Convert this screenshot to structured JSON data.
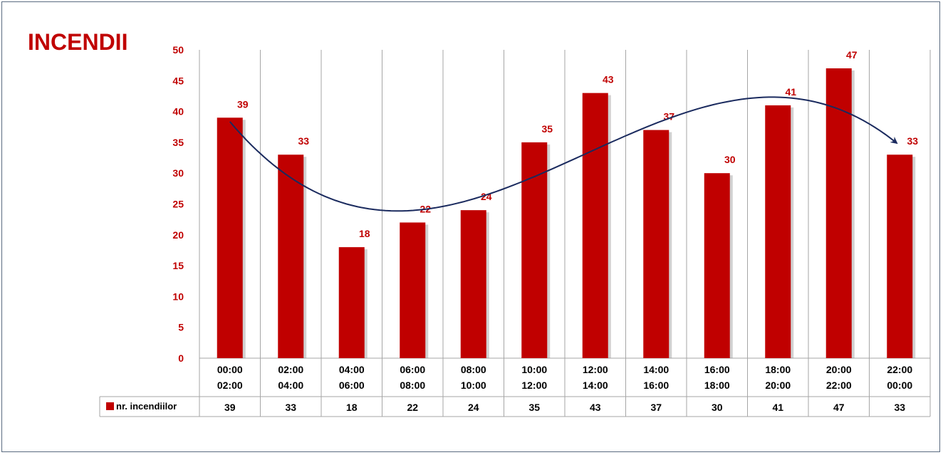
{
  "chart_data": {
    "type": "bar",
    "title": "INCENDII",
    "categories": [
      [
        "00:00",
        "02:00"
      ],
      [
        "02:00",
        "04:00"
      ],
      [
        "04:00",
        "06:00"
      ],
      [
        "06:00",
        "08:00"
      ],
      [
        "08:00",
        "10:00"
      ],
      [
        "10:00",
        "12:00"
      ],
      [
        "12:00",
        "14:00"
      ],
      [
        "14:00",
        "16:00"
      ],
      [
        "16:00",
        "18:00"
      ],
      [
        "18:00",
        "20:00"
      ],
      [
        "20:00",
        "22:00"
      ],
      [
        "22:00",
        "00:00"
      ]
    ],
    "series": [
      {
        "name": "nr. incendiilor",
        "values": [
          39,
          33,
          18,
          22,
          24,
          35,
          43,
          37,
          30,
          41,
          47,
          33
        ]
      }
    ],
    "ylim": [
      0,
      50
    ],
    "yticks": [
      0,
      5,
      10,
      15,
      20,
      25,
      30,
      35,
      40,
      45,
      50
    ],
    "xlabel": "",
    "ylabel": "",
    "grid": "vertical",
    "legend": "data-table",
    "trendline": "polynomial",
    "colors": {
      "bar": "#c00000",
      "trend": "#1a2a5e",
      "labels": "#c00000"
    }
  }
}
